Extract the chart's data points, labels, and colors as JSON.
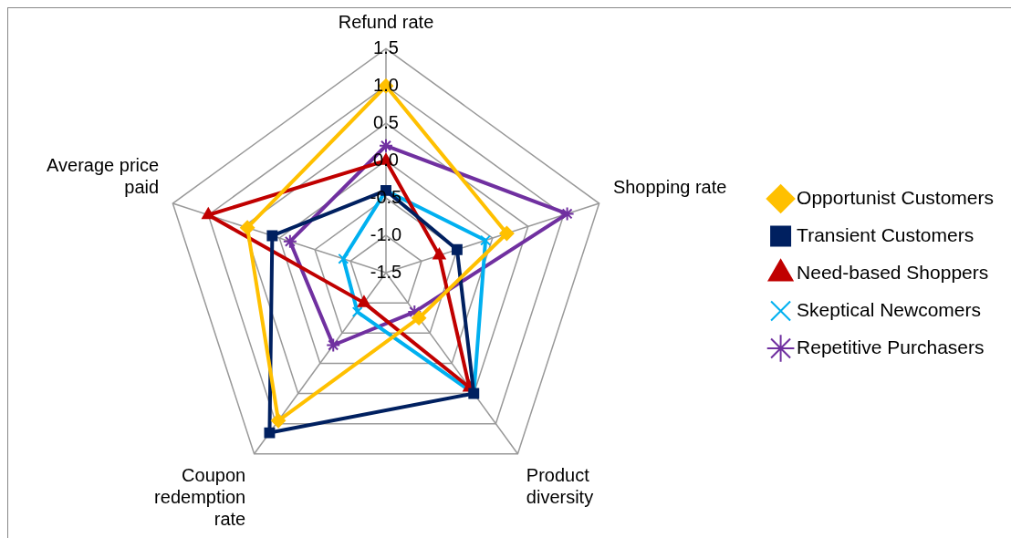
{
  "chart_data": {
    "type": "radar",
    "categories": [
      "Refund rate",
      "Shopping rate",
      "Product diversity",
      "Coupon redemption rate",
      "Average price paid"
    ],
    "ylim": [
      -1.5,
      1.5
    ],
    "yticks": [
      -1.5,
      {
        "value": -1,
        "label": "-1.0"
      },
      -0.5,
      {
        "value": 0,
        "label": "0.0"
      },
      0.5,
      {
        "value": 1,
        "label": "1.0"
      },
      1.5
    ],
    "grid": true,
    "legend": "right",
    "series": [
      {
        "name": "Opportunist Customers",
        "color": "#ffc000",
        "marker": "diamond",
        "values": [
          1.0,
          0.2,
          -0.75,
          0.95,
          0.45
        ]
      },
      {
        "name": "Transient Customers",
        "color": "#002060",
        "marker": "square",
        "values": [
          -0.4,
          -0.5,
          0.5,
          1.15,
          0.1
        ]
      },
      {
        "name": "Need-based Shoppers",
        "color": "#c00000",
        "marker": "triangle",
        "values": [
          0.0,
          -0.75,
          0.4,
          -1.0,
          1.0
        ]
      },
      {
        "name": "Skeptical Newcomers",
        "color": "#00b0f0",
        "marker": "cross",
        "values": [
          -0.4,
          -0.1,
          0.5,
          -0.85,
          -0.9
        ]
      },
      {
        "name": "Repetitive Purchasers",
        "color": "#7030a0",
        "marker": "star",
        "values": [
          0.2,
          1.05,
          -0.85,
          -0.3,
          -0.15
        ]
      }
    ]
  }
}
